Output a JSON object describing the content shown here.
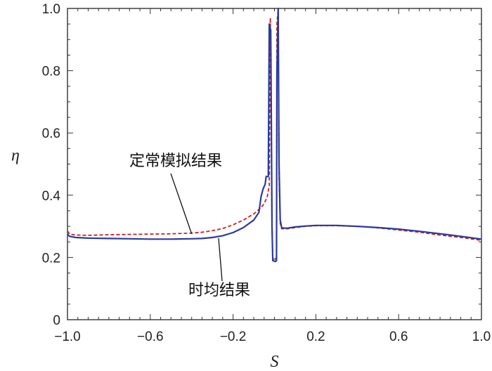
{
  "chart_data": {
    "type": "line",
    "title": "",
    "xlabel": "S",
    "ylabel": "η",
    "xlim": [
      -1.0,
      1.0
    ],
    "ylim": [
      0,
      1.0
    ],
    "grid": false,
    "x_ticks": [
      "-1.0",
      "-0.6",
      "-0.2",
      "0.2",
      "0.6",
      "1.0"
    ],
    "x_tick_values": [
      -1.0,
      -0.6,
      -0.2,
      0.2,
      0.6,
      1.0
    ],
    "y_ticks": [
      "0",
      "0.2",
      "0.4",
      "0.6",
      "0.8",
      "1.0"
    ],
    "y_tick_values": [
      0,
      0.2,
      0.4,
      0.6,
      0.8,
      1.0
    ],
    "annotations": [
      {
        "text": "定常模拟结果",
        "series": "steady",
        "x": -0.4,
        "y": 0.276
      },
      {
        "text": "时均结果",
        "series": "time_averaged",
        "x": -0.27,
        "y": 0.262
      }
    ],
    "series": [
      {
        "key": "steady",
        "color": "#cc1f1f",
        "dash": "dashed",
        "points": [
          [
            -1.0,
            0.285
          ],
          [
            -0.99,
            0.275
          ],
          [
            -0.96,
            0.272
          ],
          [
            -0.9,
            0.271
          ],
          [
            -0.8,
            0.273
          ],
          [
            -0.7,
            0.274
          ],
          [
            -0.6,
            0.275
          ],
          [
            -0.5,
            0.276
          ],
          [
            -0.4,
            0.278
          ],
          [
            -0.35,
            0.281
          ],
          [
            -0.3,
            0.286
          ],
          [
            -0.25,
            0.293
          ],
          [
            -0.2,
            0.305
          ],
          [
            -0.15,
            0.32
          ],
          [
            -0.1,
            0.34
          ],
          [
            -0.07,
            0.357
          ],
          [
            -0.055,
            0.368
          ],
          [
            -0.045,
            0.38
          ],
          [
            -0.035,
            0.395
          ],
          [
            -0.025,
            0.43
          ],
          [
            -0.02,
            0.97
          ],
          [
            -0.012,
            0.3
          ],
          [
            -0.008,
            0.195
          ],
          [
            0.005,
            0.195
          ],
          [
            0.01,
            0.2
          ],
          [
            0.012,
            0.95
          ],
          [
            0.018,
            1.0
          ],
          [
            0.022,
            0.46
          ],
          [
            0.028,
            0.31
          ],
          [
            0.035,
            0.292
          ],
          [
            0.06,
            0.292
          ],
          [
            0.1,
            0.296
          ],
          [
            0.15,
            0.3
          ],
          [
            0.2,
            0.302
          ],
          [
            0.3,
            0.302
          ],
          [
            0.4,
            0.3
          ],
          [
            0.5,
            0.295
          ],
          [
            0.6,
            0.288
          ],
          [
            0.7,
            0.281
          ],
          [
            0.8,
            0.272
          ],
          [
            0.9,
            0.264
          ],
          [
            1.0,
            0.255
          ]
        ]
      },
      {
        "key": "time_averaged",
        "color": "#2b3a9b",
        "dash": "solid",
        "points": [
          [
            -1.0,
            0.275
          ],
          [
            -0.99,
            0.268
          ],
          [
            -0.96,
            0.264
          ],
          [
            -0.9,
            0.262
          ],
          [
            -0.8,
            0.261
          ],
          [
            -0.7,
            0.26
          ],
          [
            -0.6,
            0.259
          ],
          [
            -0.5,
            0.259
          ],
          [
            -0.4,
            0.26
          ],
          [
            -0.35,
            0.261
          ],
          [
            -0.3,
            0.264
          ],
          [
            -0.25,
            0.27
          ],
          [
            -0.2,
            0.28
          ],
          [
            -0.15,
            0.296
          ],
          [
            -0.1,
            0.32
          ],
          [
            -0.075,
            0.345
          ],
          [
            -0.065,
            0.395
          ],
          [
            -0.055,
            0.42
          ],
          [
            -0.045,
            0.435
          ],
          [
            -0.04,
            0.46
          ],
          [
            -0.03,
            0.46
          ],
          [
            -0.025,
            0.95
          ],
          [
            -0.018,
            0.93
          ],
          [
            -0.012,
            0.3
          ],
          [
            -0.008,
            0.19
          ],
          [
            0.005,
            0.187
          ],
          [
            0.01,
            0.19
          ],
          [
            0.012,
            0.8
          ],
          [
            0.018,
            1.0
          ],
          [
            0.022,
            0.5
          ],
          [
            0.028,
            0.32
          ],
          [
            0.035,
            0.295
          ],
          [
            0.06,
            0.294
          ],
          [
            0.1,
            0.298
          ],
          [
            0.15,
            0.301
          ],
          [
            0.2,
            0.303
          ],
          [
            0.3,
            0.303
          ],
          [
            0.4,
            0.3
          ],
          [
            0.5,
            0.296
          ],
          [
            0.6,
            0.291
          ],
          [
            0.7,
            0.284
          ],
          [
            0.8,
            0.276
          ],
          [
            0.9,
            0.268
          ],
          [
            1.0,
            0.259
          ]
        ]
      }
    ]
  }
}
